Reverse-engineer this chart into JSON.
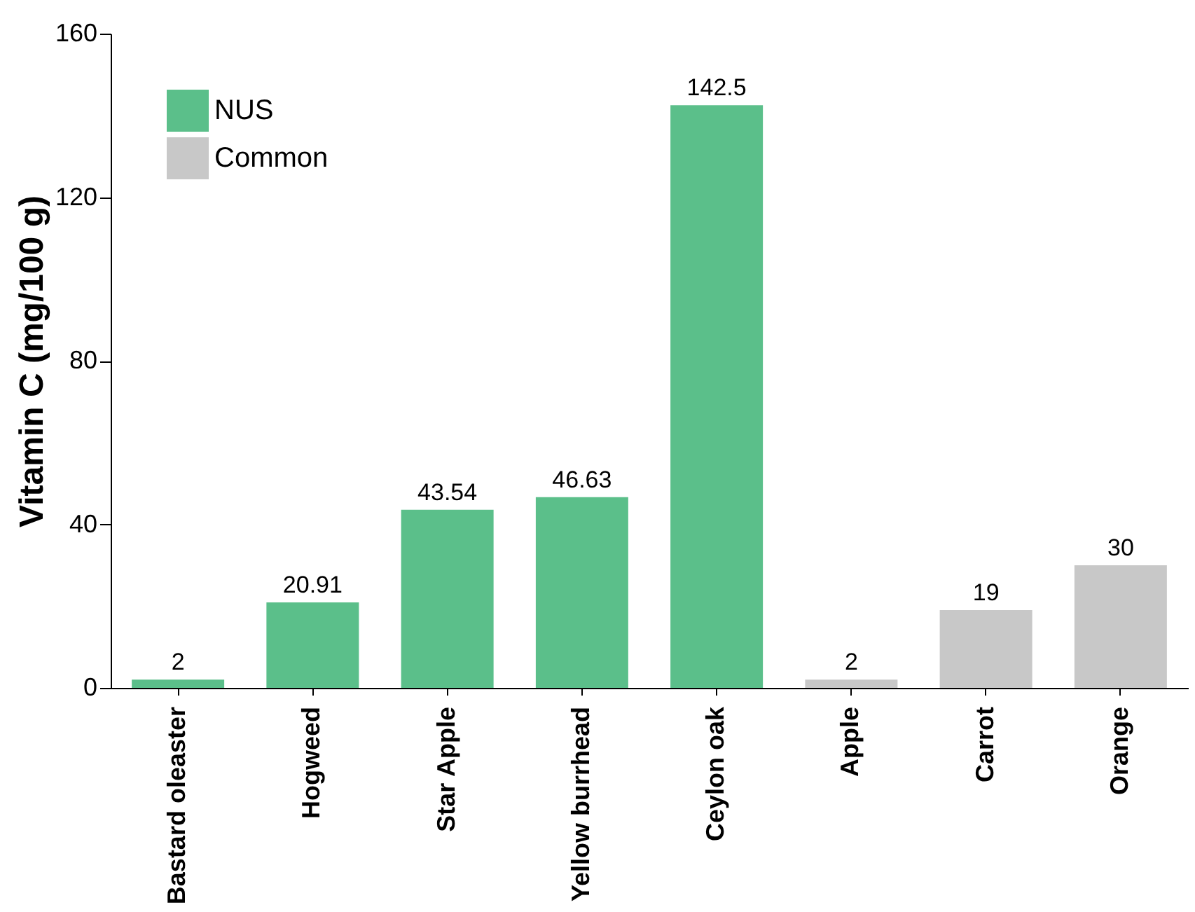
{
  "chart_data": {
    "type": "bar",
    "ylabel": "Vitamin C (mg/100 g)",
    "categories": [
      "Bastard oleaster",
      "Hogweed",
      "Star Apple",
      "Yellow burrhead",
      "Ceylon oak",
      "Apple",
      "Carrot",
      "Orange"
    ],
    "series": [
      {
        "name": "NUS",
        "color": "#5bbf8a",
        "values": [
          2,
          20.91,
          43.54,
          46.63,
          142.5,
          null,
          null,
          null
        ]
      },
      {
        "name": "Common",
        "color": "#c8c8c8",
        "values": [
          null,
          null,
          null,
          null,
          null,
          2,
          19,
          30
        ]
      }
    ],
    "ylim": [
      0,
      160
    ],
    "yticks": [
      0,
      40,
      80,
      120,
      160
    ],
    "data_labels": true,
    "legend": "top left",
    "grid": false
  }
}
